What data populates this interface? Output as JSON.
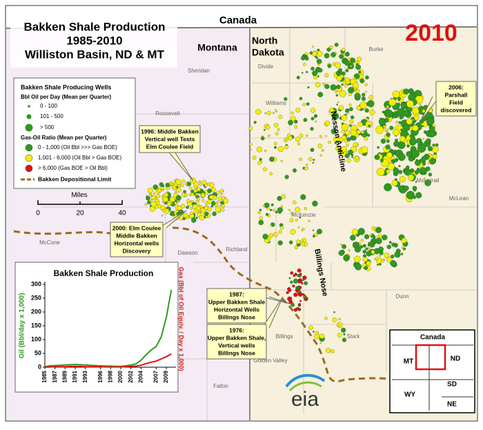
{
  "title": [
    "Bakken Shale Production",
    "1985-2010",
    "Williston Basin, ND & MT"
  ],
  "year": "2010",
  "regions": {
    "canada": "Canada",
    "montana": "Montana",
    "north_dakota": [
      "North",
      "Dakota"
    ]
  },
  "counties": [
    "Divide",
    "Burke",
    "Sheridan",
    "Williams",
    "Roosevelt",
    "Mountrail",
    "McLean",
    "McKenzie",
    "Richland",
    "Dawson",
    "McCone",
    "Dunn",
    "Stark",
    "Billings",
    "Golden Valley",
    "Fallon"
  ],
  "features": [
    "Nesson Anticline",
    "Billings Nose"
  ],
  "legend": {
    "title": "Bakken Shale Producing Wells",
    "oil_heading": "Bbl Oil per Day (Mean per Quarter)",
    "oil_items": [
      "0 - 100",
      "101 - 500",
      "> 500"
    ],
    "gor_heading": "Gas-Oil Ratio (Mean per Quarter)",
    "gor_items": [
      "0 - 1,000 (Oil Bbl >>> Gas BOE)",
      "1,001 - 6,000 (Oil Bbl > Gas BOE)",
      "> 6,000 (Gas BOE > Oil Bbl)"
    ],
    "limit": "Bakken Depositional Limit"
  },
  "scale_bar": {
    "title": "Miles",
    "ticks": [
      0,
      20,
      40
    ]
  },
  "annotations": [
    [
      "1996: Middle Bakken",
      "Vertical well Tests",
      "Elm Coulee Field"
    ],
    [
      "2000: Elm Coulee",
      "Middle Bakken",
      "Horizontal wells",
      "Discovery"
    ],
    [
      "1987:",
      "Upper Bakken Shale",
      "Horizontal Wells",
      "Billings Nose"
    ],
    [
      "1976:",
      "Upper Bakken Shale,",
      "Vertical wells",
      "Billings Nose"
    ],
    [
      "2006:",
      "Parshall",
      "Field",
      "discovered"
    ]
  ],
  "state_inset": {
    "country": "Canada",
    "states": [
      "MT",
      "ND",
      "WY",
      "SD",
      "NE"
    ]
  },
  "logo": "eia",
  "chart_data": {
    "type": "line",
    "title": "Bakken Shale Production",
    "y_label": "Oil (Bbl/day x 1,000)",
    "y2_label": "Gas (Bbl of Oil Equiv. / Day x 1,000)",
    "x": [
      1985,
      1986,
      1987,
      1988,
      1989,
      1990,
      1991,
      1992,
      1993,
      1994,
      1995,
      1996,
      1997,
      1998,
      1999,
      2000,
      2001,
      2002,
      2003,
      2004,
      2005,
      2006,
      2007,
      2008,
      2009,
      2010
    ],
    "xlim": [
      1985,
      2010.5
    ],
    "xticks": [
      1985,
      1987,
      1989,
      1991,
      1993,
      1996,
      1998,
      2000,
      2002,
      2004,
      2007,
      2009
    ],
    "ylim": [
      0,
      300
    ],
    "yticks": [
      0,
      50,
      100,
      150,
      200,
      250,
      300
    ],
    "series": [
      {
        "name": "Oil",
        "color": "#2e9a1e",
        "values": [
          2,
          5,
          6,
          7,
          8,
          9,
          10,
          9,
          8,
          7,
          6,
          5,
          4,
          4,
          3,
          3,
          5,
          8,
          12,
          25,
          45,
          62,
          75,
          110,
          180,
          280
        ]
      },
      {
        "name": "Gas",
        "color": "#e01010",
        "values": [
          0,
          1,
          2,
          2,
          2,
          3,
          3,
          3,
          2,
          2,
          2,
          2,
          1,
          1,
          1,
          1,
          2,
          3,
          4,
          7,
          13,
          18,
          22,
          30,
          38,
          48
        ]
      }
    ]
  }
}
